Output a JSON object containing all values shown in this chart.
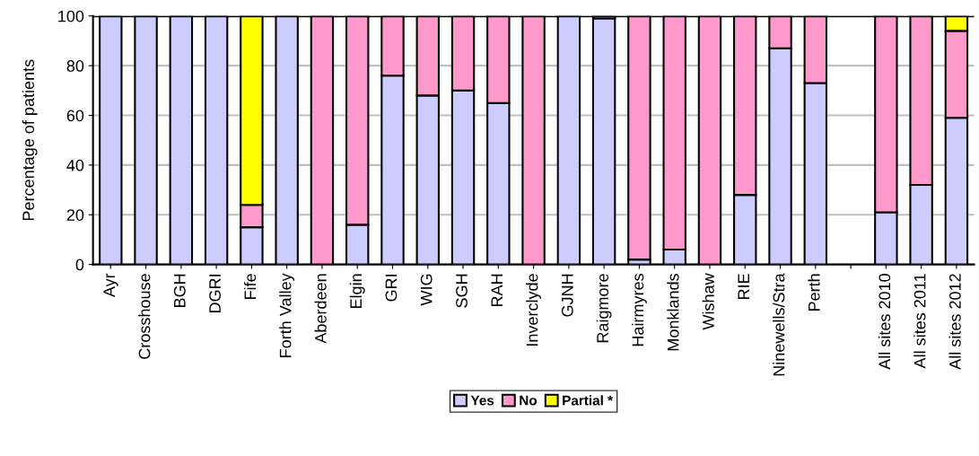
{
  "chart_data": {
    "type": "bar",
    "stacked": true,
    "ylabel": "Percentage of patients",
    "categories": [
      "Ayr",
      "Crosshouse",
      "BGH",
      "DGRI",
      "Fife",
      "Forth Valley",
      "Aberdeen",
      "Elgin",
      "GRI",
      "WIG",
      "SGH",
      "RAH",
      "Inverclyde",
      "GJNH",
      "Raigmore",
      "Hairmyres",
      "Monklands",
      "Wishaw",
      "RIE",
      "Ninewells/Stra",
      "Perth",
      null,
      "All sites 2010",
      "All sites 2011",
      "All sites 2012"
    ],
    "series": [
      {
        "name": "Yes",
        "color": "#ccccff",
        "values": [
          100,
          100,
          100,
          100,
          15,
          100,
          0,
          16,
          76,
          68,
          70,
          65,
          0,
          100,
          99,
          2,
          6,
          0,
          28,
          87,
          73,
          null,
          21,
          32,
          59
        ]
      },
      {
        "name": "No",
        "color": "#ff99cc",
        "values": [
          0,
          0,
          0,
          0,
          9,
          0,
          100,
          84,
          24,
          32,
          30,
          35,
          100,
          0,
          1,
          98,
          94,
          100,
          72,
          13,
          27,
          null,
          79,
          68,
          35
        ]
      },
      {
        "name": "Partial *",
        "color": "#ffff00",
        "values": [
          0,
          0,
          0,
          0,
          76,
          0,
          0,
          0,
          0,
          0,
          0,
          0,
          0,
          0,
          0,
          0,
          0,
          0,
          0,
          0,
          0,
          null,
          0,
          0,
          6
        ]
      }
    ],
    "ylim": [
      0,
      100
    ],
    "yticks": [
      0,
      20,
      40,
      60,
      80,
      100
    ],
    "grid": "y",
    "legend": "bottom"
  }
}
